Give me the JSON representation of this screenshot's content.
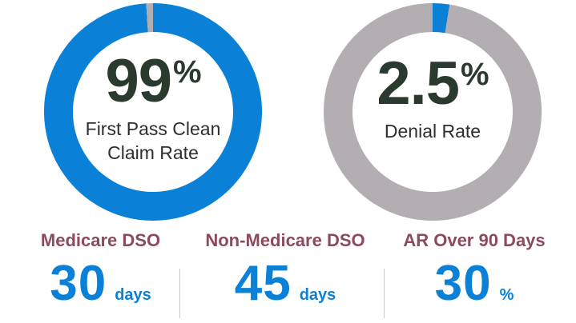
{
  "chart_data": [
    {
      "type": "pie",
      "style": "donut",
      "slices": [
        {
          "label": "First Pass Clean Claim Rate",
          "value": 99,
          "color": "#0a80d6"
        },
        {
          "label": "",
          "value": 1,
          "color": "#b3aeb1"
        }
      ],
      "value_text": "99",
      "unit_text": "%",
      "label_lines": [
        "First Pass Clean",
        "Claim Rate"
      ]
    },
    {
      "type": "pie",
      "style": "donut",
      "slices": [
        {
          "label": "Denial Rate",
          "value": 2.5,
          "color": "#0a80d6"
        },
        {
          "label": "",
          "value": 97.5,
          "color": "#b3aeb1"
        }
      ],
      "value_text": "2.5",
      "unit_text": "%",
      "label_lines": [
        "Denial Rate"
      ]
    }
  ],
  "stats": [
    {
      "title": "Medicare DSO",
      "value": "30",
      "unit": "days"
    },
    {
      "title": "Non-Medicare DSO",
      "value": "45",
      "unit": "days"
    },
    {
      "title": "AR Over 90 Days",
      "value": "30",
      "unit": "%"
    }
  ],
  "colors": {
    "accent": "#0a80d6",
    "track": "#b3aeb1",
    "headline": "#2b3a2e",
    "stat_title": "#8c4a5a"
  }
}
